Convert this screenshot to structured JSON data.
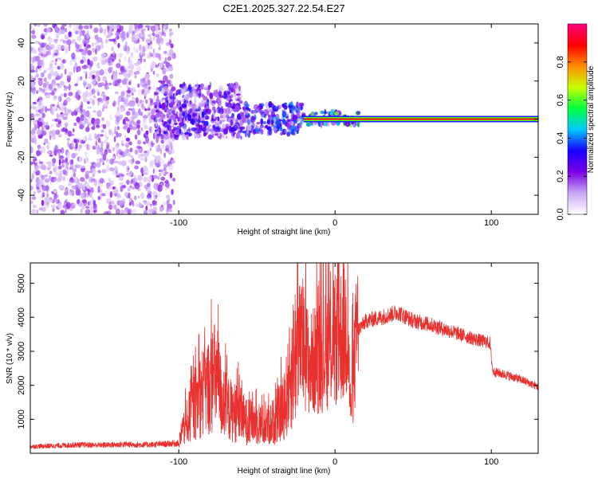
{
  "title": "C2E1.2025.327.22.54.E27",
  "chart_data": [
    {
      "type": "heatmap",
      "xlabel": "Height of straight line (km)",
      "ylabel": "Frequency (Hz)",
      "xlim": [
        -195,
        130
      ],
      "ylim": [
        -50,
        50
      ],
      "x_ticks": [
        -100,
        0,
        100
      ],
      "x_tick_labels": [
        "-100",
        "0",
        "100"
      ],
      "y_ticks": [
        -40,
        -20,
        0,
        20,
        40
      ],
      "y_tick_labels": [
        "-40",
        "-20",
        "0",
        "20",
        "40"
      ],
      "grid": false,
      "colorbar": {
        "label": "Normalized spectral amplitude",
        "range": [
          0,
          1
        ],
        "ticks": [
          0,
          0.2,
          0.4,
          0.6,
          0.8
        ],
        "tick_labels": [
          "0.0",
          "0.2",
          "0.4",
          "0.6",
          "0.8"
        ],
        "colors": [
          "#ffffff",
          "#c9a8f5",
          "#7a00e6",
          "#1a00ff",
          "#00c8ff",
          "#00ff40",
          "#c8ff00",
          "#ff8c00",
          "#ff0000",
          "#ff0080"
        ]
      },
      "regions": [
        {
          "x_range": [
            -195,
            -103
          ],
          "freq_range": [
            -50,
            50
          ],
          "level": 0.15
        },
        {
          "x_range": [
            -115,
            -60
          ],
          "freq_range": [
            -10,
            18
          ],
          "level": 0.25
        },
        {
          "x_range": [
            -60,
            -20
          ],
          "freq_range": [
            -8,
            8
          ],
          "level": 0.3
        },
        {
          "x_range": [
            -20,
            15
          ],
          "freq_range": [
            -3,
            4
          ],
          "level": 0.45
        },
        {
          "x_range": [
            -20,
            130
          ],
          "freq_range": [
            0,
            0
          ],
          "level": 0.9
        }
      ]
    },
    {
      "type": "line",
      "xlabel": "Height of straight line (km)",
      "ylabel": "SNR (10 * v/v)",
      "xlim": [
        -195,
        130
      ],
      "ylim": [
        0,
        5600
      ],
      "x_ticks": [
        -100,
        0,
        100
      ],
      "x_tick_labels": [
        "-100",
        "0",
        "100"
      ],
      "y_ticks": [
        1000,
        2000,
        3000,
        4000,
        5000
      ],
      "y_tick_labels": [
        "1000",
        "2000",
        "3000",
        "4000",
        "5000"
      ],
      "grid": false,
      "color": "#e8312f",
      "series": [
        {
          "x": [
            -195,
            -180,
            -165,
            -150,
            -135,
            -120,
            -110,
            -100,
            -95,
            -90,
            -85,
            -80,
            -76,
            -72,
            -68,
            -64,
            -60,
            -56,
            -52,
            -48,
            -44,
            -40,
            -36,
            -32,
            -28,
            -24,
            -20,
            -16,
            -12,
            -8,
            -4,
            0,
            4,
            8,
            10,
            14,
            20,
            30,
            40,
            50,
            60,
            70,
            80,
            90,
            99,
            101,
            110,
            120,
            130
          ],
          "y": [
            200,
            220,
            250,
            240,
            260,
            250,
            270,
            300,
            900,
            1400,
            1800,
            2000,
            2300,
            1500,
            1300,
            1200,
            1100,
            900,
            950,
            850,
            800,
            900,
            1100,
            1500,
            2400,
            3300,
            3000,
            2600,
            2800,
            2900,
            3100,
            3300,
            3500,
            3700,
            1200,
            3600,
            3900,
            4000,
            4150,
            3900,
            3800,
            3650,
            3500,
            3350,
            3250,
            2400,
            2300,
            2150,
            1950
          ]
        }
      ]
    }
  ]
}
